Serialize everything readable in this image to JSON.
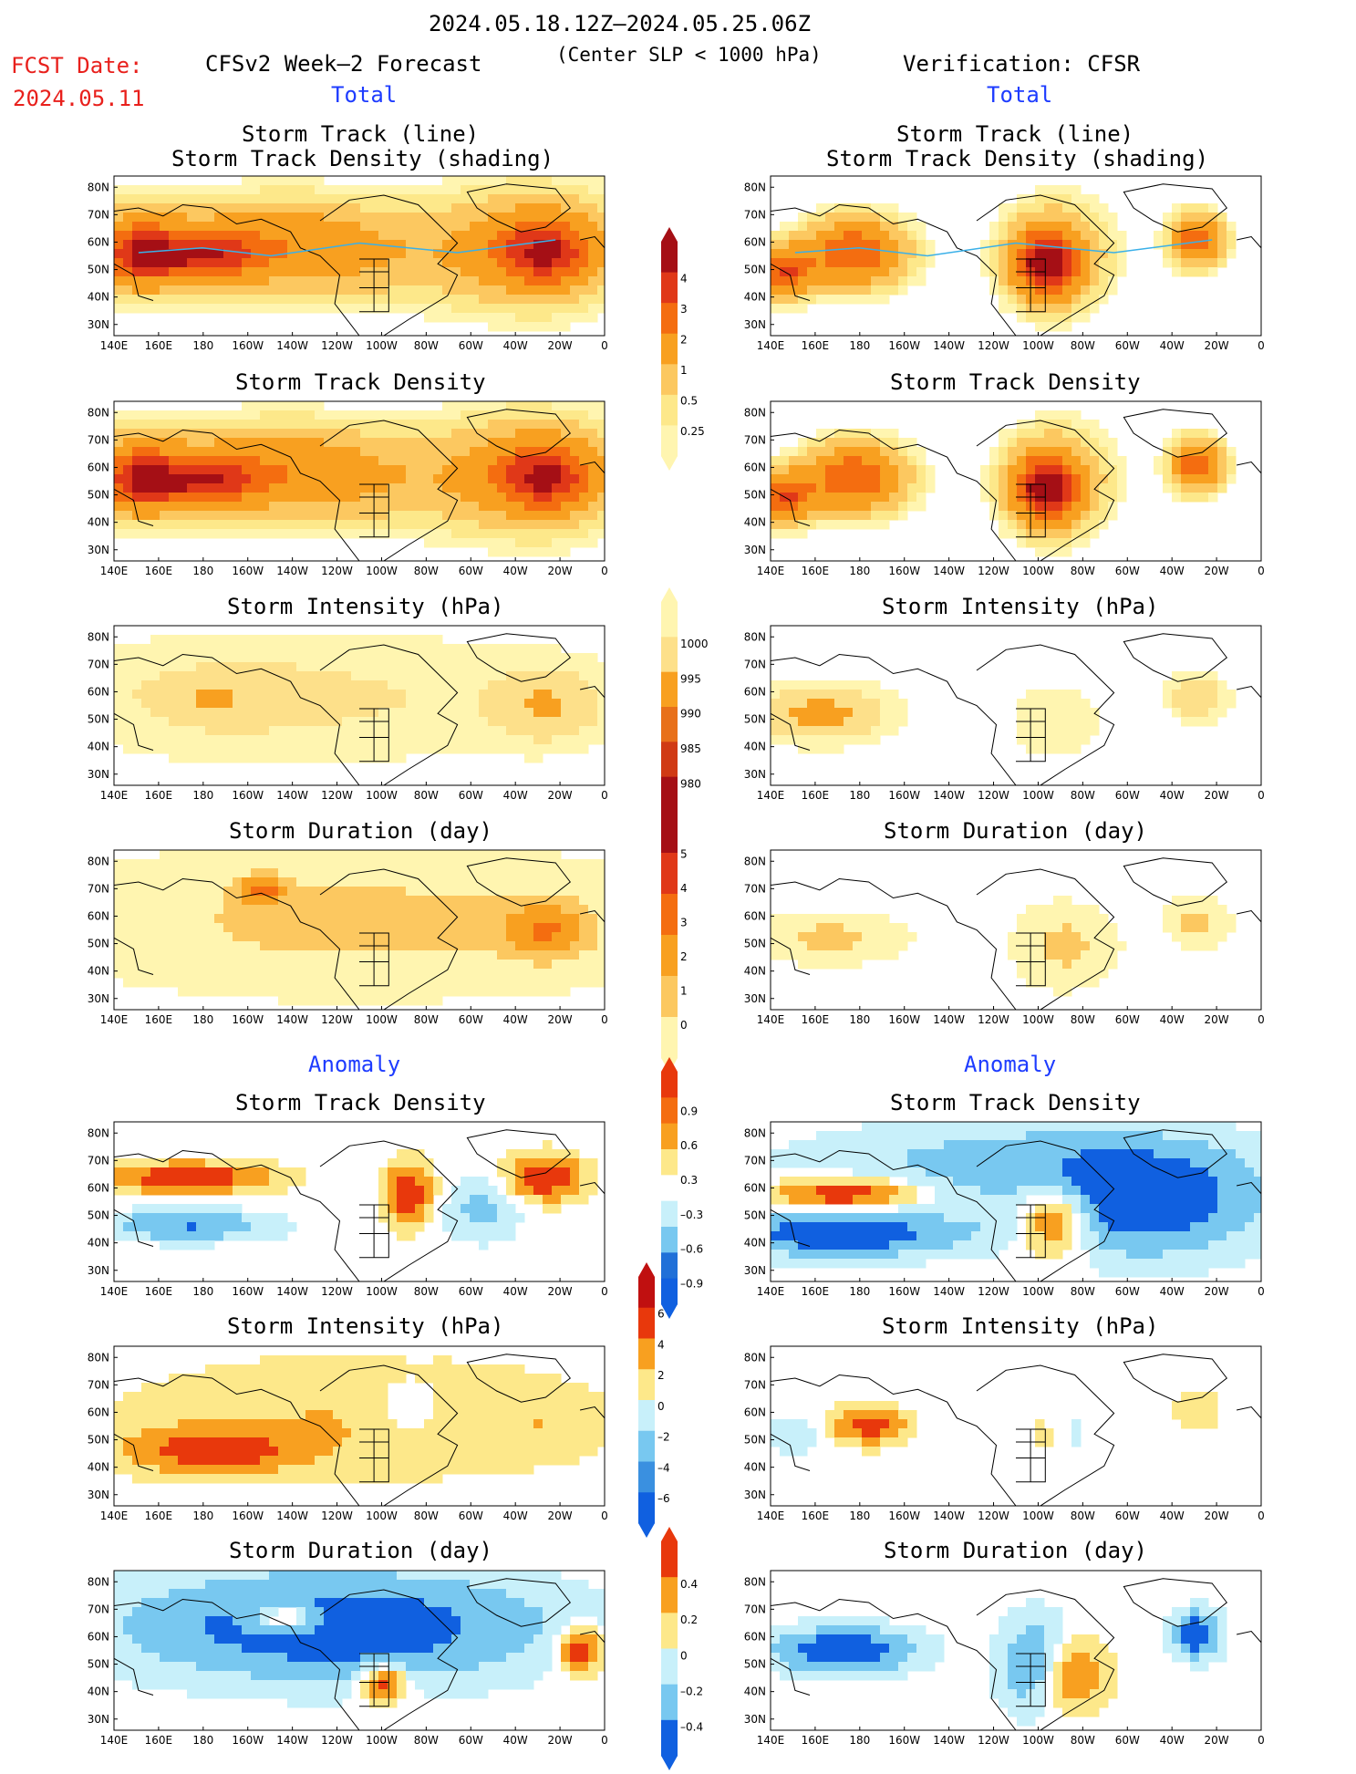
{
  "header": {
    "period": "2024.05.18.12Z–2024.05.25.06Z",
    "criterion": "(Center SLP < 1000 hPa)",
    "fcst_date_label": "FCST Date:",
    "fcst_date": "2024.05.11",
    "left_column_title": "CFSv2 Week–2 Forecast",
    "right_column_title": "Verification: CFSR"
  },
  "sections": {
    "total": "Total",
    "anomaly": "Anomaly"
  },
  "panel_titles": {
    "track_line": "Storm Track (line)",
    "track_shading": "Storm Track Density (shading)",
    "density": "Storm Track Density",
    "intensity": "Storm Intensity (hPa)",
    "duration": "Storm Duration (day)"
  },
  "map_axes": {
    "lon_labels": [
      "140E",
      "160E",
      "180",
      "160W",
      "140W",
      "120W",
      "100W",
      "80W",
      "60W",
      "40W",
      "20W",
      "0"
    ],
    "lat_labels": [
      "80N",
      "70N",
      "60N",
      "50N",
      "40N",
      "30N"
    ]
  },
  "colorbars": {
    "density_total": {
      "labels": [
        "4",
        "3",
        "2",
        "1",
        "0.5",
        "0.25"
      ],
      "colors": [
        "#a50f15",
        "#e03818",
        "#f46d10",
        "#f8a020",
        "#fcc860",
        "#fde88a",
        "#fff5b0"
      ]
    },
    "intensity_total": {
      "labels": [
        "1000",
        "995",
        "990",
        "985",
        "980"
      ],
      "colors": [
        "#fff5b0",
        "#fde08a",
        "#f8a020",
        "#e8701a",
        "#d03a14",
        "#a50f15"
      ]
    },
    "duration_total": {
      "labels": [
        "5",
        "4",
        "3",
        "2",
        "1",
        "0"
      ],
      "colors": [
        "#a50f15",
        "#e03818",
        "#f46d10",
        "#f8a020",
        "#fcc860",
        "#fff5b0"
      ]
    },
    "density_anom": {
      "labels": [
        "0.9",
        "0.6",
        "0.3",
        "–0.3",
        "–0.6",
        "–0.9"
      ],
      "colors": [
        "#e8380c",
        "#f46d10",
        "#f8a020",
        "#fde88a",
        "#ffffff",
        "#c8f0fa",
        "#78c8f0",
        "#2070d8",
        "#1060e0"
      ]
    },
    "intensity_anom": {
      "labels": [
        "6",
        "4",
        "2",
        "0",
        "–2",
        "–4",
        "–6"
      ],
      "colors": [
        "#c01010",
        "#e8380c",
        "#f8a020",
        "#fde88a",
        "#c8f0fa",
        "#78c8f0",
        "#3a90e0",
        "#1060e0"
      ]
    },
    "duration_anom": {
      "labels": [
        "0.4",
        "0.2",
        "0",
        "–0.2",
        "–0.4"
      ],
      "colors": [
        "#e8380c",
        "#f8a020",
        "#fde88a",
        "#c8f0fa",
        "#78c8f0",
        "#1060e0"
      ]
    }
  },
  "panels": [
    {
      "id": "fc-track",
      "field": "density",
      "col": "left",
      "row": 0,
      "spots": [
        [
          0.05,
          0.48,
          0.08,
          0.2,
          3
        ],
        [
          0.18,
          0.5,
          0.12,
          0.16,
          3
        ],
        [
          0.12,
          0.45,
          0.2,
          0.3,
          1
        ],
        [
          0.5,
          0.48,
          0.25,
          0.3,
          1
        ],
        [
          0.88,
          0.48,
          0.1,
          0.2,
          3
        ],
        [
          0.85,
          0.45,
          0.18,
          0.35,
          1.5
        ],
        [
          0.35,
          0.4,
          0.15,
          0.25,
          1
        ]
      ]
    },
    {
      "id": "ob-track",
      "field": "density",
      "col": "right",
      "row": 0,
      "spots": [
        [
          0.03,
          0.6,
          0.06,
          0.15,
          3
        ],
        [
          0.17,
          0.48,
          0.1,
          0.2,
          3
        ],
        [
          0.56,
          0.55,
          0.06,
          0.2,
          4
        ],
        [
          0.58,
          0.5,
          0.1,
          0.3,
          1.5
        ],
        [
          0.87,
          0.4,
          0.05,
          0.15,
          3
        ]
      ]
    },
    {
      "id": "fc-density",
      "field": "density",
      "col": "left",
      "row": 1,
      "spots": [
        [
          0.05,
          0.48,
          0.08,
          0.2,
          3
        ],
        [
          0.18,
          0.5,
          0.12,
          0.16,
          3
        ],
        [
          0.12,
          0.45,
          0.2,
          0.3,
          1
        ],
        [
          0.5,
          0.48,
          0.25,
          0.3,
          1
        ],
        [
          0.88,
          0.48,
          0.1,
          0.2,
          3
        ],
        [
          0.85,
          0.45,
          0.18,
          0.35,
          1.5
        ],
        [
          0.35,
          0.4,
          0.15,
          0.25,
          1
        ]
      ]
    },
    {
      "id": "ob-density",
      "field": "density",
      "col": "right",
      "row": 1,
      "spots": [
        [
          0.03,
          0.6,
          0.06,
          0.15,
          3
        ],
        [
          0.17,
          0.48,
          0.1,
          0.2,
          3
        ],
        [
          0.56,
          0.55,
          0.06,
          0.2,
          4
        ],
        [
          0.58,
          0.5,
          0.1,
          0.3,
          1.5
        ],
        [
          0.87,
          0.4,
          0.05,
          0.15,
          3
        ]
      ]
    },
    {
      "id": "fc-intensity",
      "field": "intensity",
      "col": "left",
      "row": 2,
      "spots": [
        [
          0.5,
          0.45,
          0.5,
          0.35,
          0.5
        ],
        [
          0.2,
          0.45,
          0.25,
          0.3,
          0.5
        ],
        [
          0.88,
          0.5,
          0.1,
          0.2,
          1.5
        ],
        [
          0.2,
          0.45,
          0.05,
          0.1,
          1.5
        ]
      ]
    },
    {
      "id": "ob-intensity",
      "field": "intensity",
      "col": "right",
      "row": 2,
      "spots": [
        [
          0.1,
          0.55,
          0.12,
          0.15,
          2
        ],
        [
          0.58,
          0.6,
          0.08,
          0.2,
          0.5
        ],
        [
          0.87,
          0.45,
          0.05,
          0.12,
          1.5
        ]
      ]
    },
    {
      "id": "fc-duration",
      "field": "duration",
      "col": "left",
      "row": 3,
      "spots": [
        [
          0.5,
          0.45,
          0.5,
          0.35,
          1.5
        ],
        [
          0.88,
          0.5,
          0.1,
          0.2,
          2.5
        ],
        [
          0.3,
          0.25,
          0.05,
          0.1,
          3
        ]
      ]
    },
    {
      "id": "ob-duration",
      "field": "duration",
      "col": "right",
      "row": 3,
      "spots": [
        [
          0.12,
          0.55,
          0.12,
          0.12,
          1.5
        ],
        [
          0.6,
          0.6,
          0.08,
          0.2,
          1.5
        ],
        [
          0.87,
          0.45,
          0.05,
          0.12,
          1.5
        ]
      ]
    },
    {
      "id": "fc-density-anom",
      "field": "density_anom",
      "col": "left",
      "row": 4,
      "spots": [
        [
          0.15,
          0.35,
          0.18,
          0.1,
          0.9
        ],
        [
          0.15,
          0.65,
          0.18,
          0.1,
          -0.6
        ],
        [
          0.88,
          0.35,
          0.08,
          0.15,
          0.9
        ],
        [
          0.6,
          0.45,
          0.05,
          0.2,
          0.9
        ],
        [
          0.75,
          0.55,
          0.08,
          0.2,
          -0.4
        ]
      ]
    },
    {
      "id": "ob-density-anom",
      "field": "density_anom",
      "col": "right",
      "row": 4,
      "spots": [
        [
          0.15,
          0.45,
          0.15,
          0.1,
          0.9
        ],
        [
          0.15,
          0.7,
          0.25,
          0.15,
          -0.9
        ],
        [
          0.58,
          0.6,
          0.08,
          0.25,
          0.9
        ],
        [
          0.75,
          0.5,
          0.25,
          0.35,
          -0.9
        ],
        [
          0.5,
          0.25,
          0.45,
          0.25,
          -0.4
        ]
      ]
    },
    {
      "id": "fc-intensity-anom",
      "field": "intensity_anom",
      "col": "left",
      "row": 5,
      "spots": [
        [
          0.2,
          0.65,
          0.18,
          0.15,
          5
        ],
        [
          0.5,
          0.45,
          0.5,
          0.4,
          2
        ],
        [
          0.6,
          0.4,
          0.08,
          0.2,
          -2
        ],
        [
          0.88,
          0.5,
          0.1,
          0.2,
          1
        ]
      ]
    },
    {
      "id": "ob-intensity-anom",
      "field": "intensity_anom",
      "col": "right",
      "row": 5,
      "spots": [
        [
          0.2,
          0.5,
          0.08,
          0.12,
          5
        ],
        [
          0.58,
          0.55,
          0.05,
          0.2,
          2
        ],
        [
          0.6,
          0.55,
          0.05,
          0.2,
          -2
        ],
        [
          0.05,
          0.55,
          0.05,
          0.12,
          -2
        ],
        [
          0.87,
          0.4,
          0.05,
          0.12,
          2
        ]
      ]
    },
    {
      "id": "fc-duration-anom",
      "field": "duration_anom",
      "col": "left",
      "row": 6,
      "spots": [
        [
          0.45,
          0.35,
          0.45,
          0.35,
          -0.4
        ],
        [
          0.35,
          0.3,
          0.08,
          0.1,
          0.4
        ],
        [
          0.55,
          0.7,
          0.05,
          0.12,
          0.4
        ],
        [
          0.95,
          0.5,
          0.05,
          0.15,
          0.4
        ]
      ]
    },
    {
      "id": "ob-duration-anom",
      "field": "duration_anom",
      "col": "right",
      "row": 6,
      "spots": [
        [
          0.15,
          0.5,
          0.15,
          0.15,
          -0.4
        ],
        [
          0.6,
          0.65,
          0.08,
          0.25,
          0.4
        ],
        [
          0.55,
          0.6,
          0.08,
          0.3,
          -0.4
        ],
        [
          0.87,
          0.4,
          0.05,
          0.15,
          -0.4
        ]
      ]
    }
  ]
}
